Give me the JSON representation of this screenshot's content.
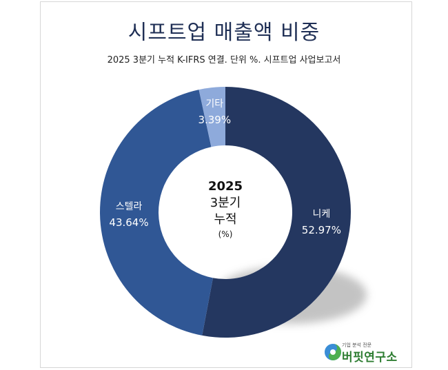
{
  "chart_data": {
    "type": "pie",
    "title": "시프트업 매출액 비중",
    "subtitle": "2025 3분기 누적 K-IFRS 연결. 단위 %. 시프트업 사업보고서",
    "center_label": [
      "2025",
      "3분기",
      "누적",
      "(%)"
    ],
    "series": [
      {
        "name": "니케",
        "value": 52.97,
        "label": "52.97%",
        "color": "#243760"
      },
      {
        "name": "스텔라",
        "value": 43.64,
        "label": "43.64%",
        "color": "#305795"
      },
      {
        "name": "기타",
        "value": 3.39,
        "label": "3.39%",
        "color": "#8eaadb"
      }
    ]
  },
  "logo": {
    "tagline": "기업 분석 전문",
    "name": "버핏연구소"
  }
}
